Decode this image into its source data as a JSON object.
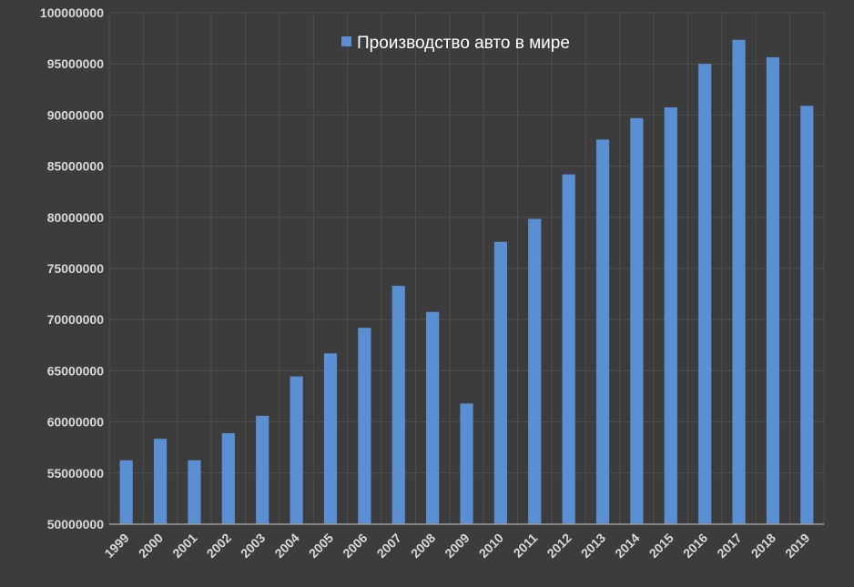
{
  "chart_data": {
    "type": "bar",
    "categories": [
      "1999",
      "2000",
      "2001",
      "2002",
      "2003",
      "2004",
      "2005",
      "2006",
      "2007",
      "2008",
      "2009",
      "2010",
      "2011",
      "2012",
      "2013",
      "2014",
      "2015",
      "2016",
      "2017",
      "2018",
      "2019"
    ],
    "series": [
      {
        "name": "Производство авто в мире",
        "values": [
          56250000,
          58350000,
          56250000,
          58900000,
          60600000,
          64450000,
          66700000,
          69200000,
          73300000,
          70750000,
          61800000,
          77600000,
          79850000,
          84200000,
          87600000,
          89700000,
          90750000,
          95000000,
          97350000,
          95650000,
          90900000
        ]
      }
    ],
    "ylim": [
      50000000,
      100000000
    ],
    "y_ticks": [
      "50000000",
      "55000000",
      "60000000",
      "65000000",
      "70000000",
      "75000000",
      "80000000",
      "85000000",
      "90000000",
      "95000000",
      "100000000"
    ],
    "xlabel": "",
    "ylabel": "",
    "grid": true,
    "legend_position": "top-center",
    "colors": {
      "background": "#3c3c3c",
      "bar": "#5b8fd3",
      "grid": "#4e4e4e",
      "axis": "#9a9a9a",
      "text": "#d9d9d9",
      "legend_text": "#ffffff"
    }
  }
}
